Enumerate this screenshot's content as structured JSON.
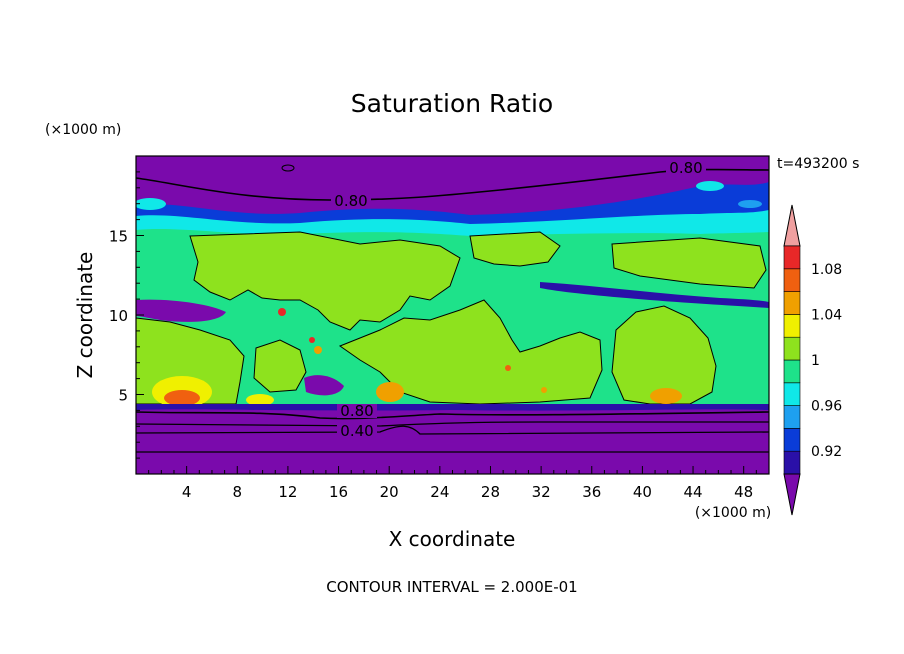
{
  "chart_data": {
    "type": "heatmap",
    "title": "Saturation Ratio",
    "xlabel": "X coordinate",
    "ylabel": "Z coordinate",
    "x_unit": "(×1000 m)",
    "y_unit": "(×1000 m)",
    "time_label": "t=493200 s",
    "footer": "CONTOUR INTERVAL = 2.000E-01",
    "xlim": [
      0,
      50
    ],
    "ylim": [
      0,
      20
    ],
    "x_ticks": [
      "4",
      "8",
      "12",
      "16",
      "20",
      "24",
      "28",
      "32",
      "36",
      "40",
      "44",
      "48"
    ],
    "y_ticks": [
      "5",
      "10",
      "15"
    ],
    "colorbar": {
      "labels": [
        "1.08",
        "1.04",
        "1",
        "0.96",
        "0.92"
      ],
      "levels": [
        0.92,
        0.94,
        0.96,
        0.98,
        1.0,
        1.02,
        1.04,
        1.06,
        1.08
      ],
      "colors": [
        "#7a0aac",
        "#2a10a8",
        "#0a3cd8",
        "#1ea0f0",
        "#10e8e8",
        "#1ee28a",
        "#8ee21e",
        "#f0f000",
        "#f0a000",
        "#f06010",
        "#e82828",
        "#f0a0a0"
      ]
    },
    "contour_labels": [
      "0.80",
      "0.80",
      "0.80",
      "0.40"
    ]
  }
}
